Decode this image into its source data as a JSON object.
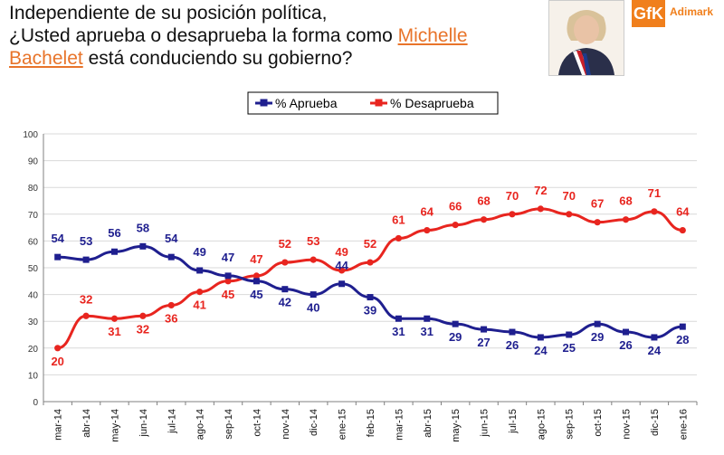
{
  "header": {
    "question_line1": "Independiente de su posición política,",
    "question_line2_pre": "¿Usted aprueba o desaprueba la forma como ",
    "question_name_1": "Michelle",
    "question_name_2": "Bachelet",
    "question_line3_post": " está conduciendo su gobierno?",
    "logo_mark": "GfK",
    "logo_text": "Adimark"
  },
  "colors": {
    "aprueba": "#1f1f8f",
    "desaprueba": "#e8251f",
    "accent": "#e8742a"
  },
  "chart_data": {
    "type": "line",
    "categories": [
      "mar-14",
      "abr-14",
      "may-14",
      "jun-14",
      "jul-14",
      "ago-14",
      "sep-14",
      "oct-14",
      "nov-14",
      "dic-14",
      "ene-15",
      "feb-15",
      "mar-15",
      "abr-15",
      "may-15",
      "jun-15",
      "jul-15",
      "ago-15",
      "sep-15",
      "oct-15",
      "nov-15",
      "dic-15",
      "ene-16"
    ],
    "series": [
      {
        "name": "% Aprueba",
        "color": "#1f1f8f",
        "values": [
          54,
          53,
          56,
          58,
          54,
          49,
          47,
          45,
          42,
          40,
          44,
          39,
          31,
          31,
          29,
          27,
          26,
          24,
          25,
          29,
          26,
          24,
          28
        ]
      },
      {
        "name": "% Desaprueba",
        "color": "#e8251f",
        "values": [
          20,
          32,
          31,
          32,
          36,
          41,
          45,
          47,
          52,
          53,
          49,
          52,
          61,
          64,
          66,
          68,
          70,
          72,
          70,
          67,
          68,
          71,
          64
        ]
      }
    ],
    "ylim": [
      0,
      100
    ],
    "yticks": [
      "0",
      "10",
      "20",
      "30",
      "40",
      "50",
      "60",
      "70",
      "80",
      "90",
      "100"
    ],
    "grid": true,
    "legend": "top-center"
  }
}
